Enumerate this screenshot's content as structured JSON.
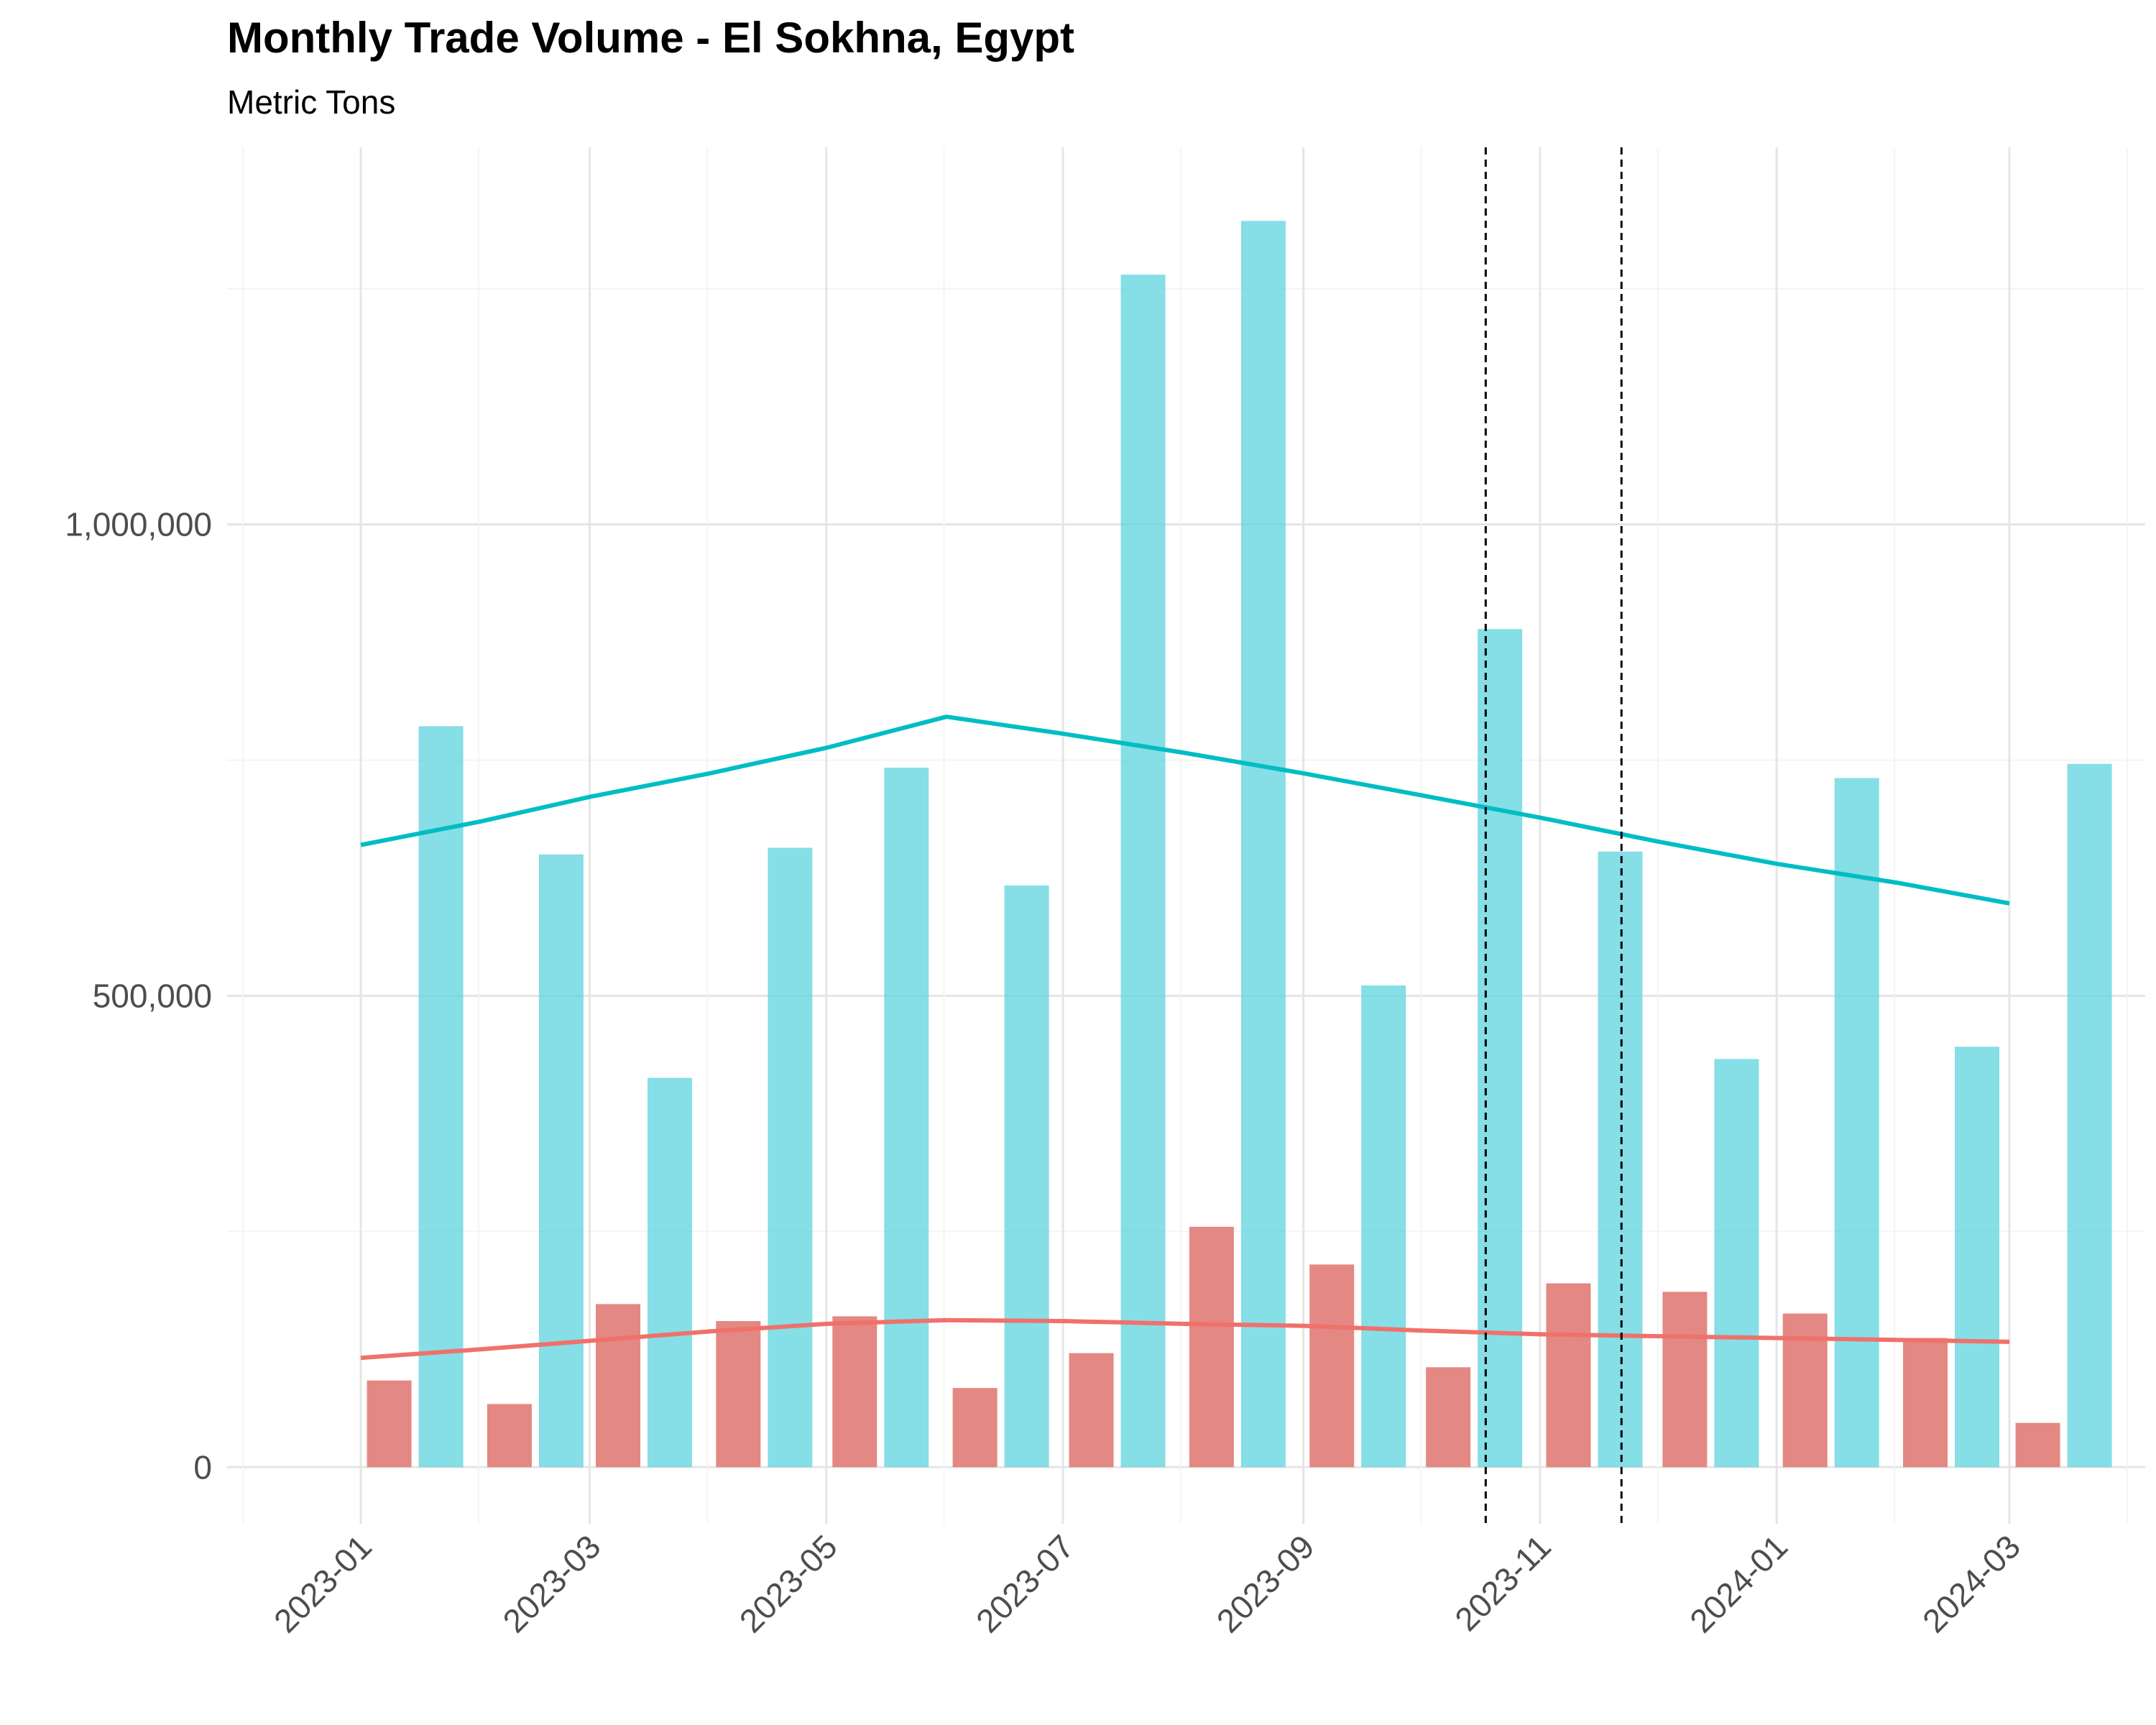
{
  "chart_data": {
    "type": "bar",
    "title": "Monthly Trade Volume - El Sokhna, Egypt",
    "subtitle": "Metric Tons",
    "xlabel": "",
    "ylabel": "",
    "ylim": [
      -60000,
      1400000
    ],
    "yticks": [
      0,
      500000,
      1000000
    ],
    "ytick_labels": [
      "0",
      "500,000",
      "1,000,000"
    ],
    "xtick_labels": [
      "2023-01",
      "2023-03",
      "2023-05",
      "2023-07",
      "2023-09",
      "2023-11",
      "2024-01",
      "2024-03"
    ],
    "xtick_dates": [
      "2023-01-01",
      "2023-03-01",
      "2023-05-01",
      "2023-07-01",
      "2023-09-01",
      "2023-11-01",
      "2024-01-01",
      "2024-03-01"
    ],
    "grid": true,
    "legend": "none",
    "categories": [
      "2023-01",
      "2023-02",
      "2023-03",
      "2023-04",
      "2023-05",
      "2023-06",
      "2023-07",
      "2023-08",
      "2023-09",
      "2023-10",
      "2023-11",
      "2023-12",
      "2024-01",
      "2024-02",
      "2024-03"
    ],
    "series": [
      {
        "color": "#e07b74",
        "values": [
          92000,
          67000,
          173000,
          155000,
          160000,
          84000,
          121000,
          255000,
          215000,
          106000,
          195000,
          186000,
          163000,
          137000,
          47000
        ],
        "trend": [
          116000,
          125000,
          134000,
          144000,
          152000,
          156000,
          155000,
          152000,
          150000,
          145000,
          141000,
          139000,
          137000,
          135000,
          133000
        ]
      },
      {
        "color": "#5dd3dd",
        "values": [
          786000,
          650000,
          413000,
          657000,
          742000,
          617000,
          1265000,
          1322000,
          511000,
          889000,
          653000,
          433000,
          731000,
          446000,
          746000
        ],
        "trend": [
          660000,
          685000,
          711000,
          736000,
          763000,
          796000,
          778000,
          758000,
          736000,
          713000,
          689000,
          664000,
          640000,
          620000,
          598000
        ]
      }
    ],
    "trend_colors": [
      "#f0716b",
      "#00bdc4"
    ],
    "reference_lines": [
      "2023-10-18",
      "2023-11-22"
    ]
  }
}
